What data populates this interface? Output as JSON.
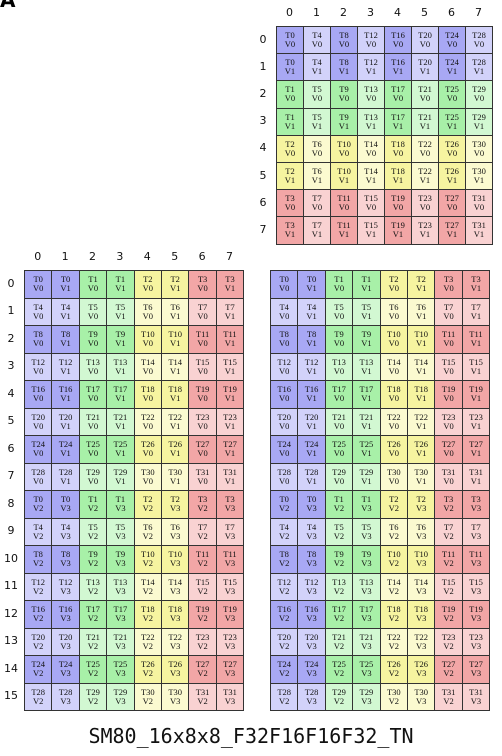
{
  "corner_label": "A",
  "matrix_b": {
    "col_labels": [
      0,
      1,
      2,
      3,
      4,
      5,
      6,
      7
    ],
    "row_labels": [
      0,
      1,
      2,
      3,
      4,
      5,
      6,
      7
    ],
    "rows": [
      [
        "T0\nV0",
        "T4\nV0",
        "T8\nV0",
        "T12\nV0",
        "T16\nV0",
        "T20\nV0",
        "T24\nV0",
        "T28\nV0"
      ],
      [
        "T0\nV1",
        "T4\nV1",
        "T8\nV1",
        "T12\nV1",
        "T16\nV1",
        "T20\nV1",
        "T24\nV1",
        "T28\nV1"
      ],
      [
        "T1\nV0",
        "T5\nV0",
        "T9\nV0",
        "T13\nV0",
        "T17\nV0",
        "T21\nV0",
        "T25\nV0",
        "T29\nV0"
      ],
      [
        "T1\nV1",
        "T5\nV1",
        "T9\nV1",
        "T13\nV1",
        "T17\nV1",
        "T21\nV1",
        "T25\nV1",
        "T29\nV1"
      ],
      [
        "T2\nV0",
        "T6\nV0",
        "T10\nV0",
        "T14\nV0",
        "T18\nV0",
        "T22\nV0",
        "T26\nV0",
        "T30\nV0"
      ],
      [
        "T2\nV1",
        "T6\nV1",
        "T10\nV1",
        "T14\nV1",
        "T18\nV1",
        "T22\nV1",
        "T26\nV1",
        "T30\nV1"
      ],
      [
        "T3\nV0",
        "T7\nV0",
        "T11\nV0",
        "T15\nV0",
        "T19\nV0",
        "T23\nV0",
        "T27\nV0",
        "T31\nV0"
      ],
      [
        "T3\nV1",
        "T7\nV1",
        "T11\nV1",
        "T15\nV1",
        "T19\nV1",
        "T23\nV1",
        "T27\nV1",
        "T31\nV1"
      ]
    ]
  },
  "matrix_a": {
    "col_labels": [
      0,
      1,
      2,
      3,
      4,
      5,
      6,
      7
    ],
    "row_labels": [
      0,
      1,
      2,
      3,
      4,
      5,
      6,
      7,
      8,
      9,
      10,
      11,
      12,
      13,
      14,
      15
    ],
    "rows": [
      [
        "T0\nV0",
        "T0\nV1",
        "T1\nV0",
        "T1\nV1",
        "T2\nV0",
        "T2\nV1",
        "T3\nV0",
        "T3\nV1"
      ],
      [
        "T4\nV0",
        "T4\nV1",
        "T5\nV0",
        "T5\nV1",
        "T6\nV0",
        "T6\nV1",
        "T7\nV0",
        "T7\nV1"
      ],
      [
        "T8\nV0",
        "T8\nV1",
        "T9\nV0",
        "T9\nV1",
        "T10\nV0",
        "T10\nV1",
        "T11\nV0",
        "T11\nV1"
      ],
      [
        "T12\nV0",
        "T12\nV1",
        "T13\nV0",
        "T13\nV1",
        "T14\nV0",
        "T14\nV1",
        "T15\nV0",
        "T15\nV1"
      ],
      [
        "T16\nV0",
        "T16\nV1",
        "T17\nV0",
        "T17\nV1",
        "T18\nV0",
        "T18\nV1",
        "T19\nV0",
        "T19\nV1"
      ],
      [
        "T20\nV0",
        "T20\nV1",
        "T21\nV0",
        "T21\nV1",
        "T22\nV0",
        "T22\nV1",
        "T23\nV0",
        "T23\nV1"
      ],
      [
        "T24\nV0",
        "T24\nV1",
        "T25\nV0",
        "T25\nV1",
        "T26\nV0",
        "T26\nV1",
        "T27\nV0",
        "T27\nV1"
      ],
      [
        "T28\nV0",
        "T28\nV1",
        "T29\nV0",
        "T29\nV1",
        "T30\nV0",
        "T30\nV1",
        "T31\nV0",
        "T31\nV1"
      ],
      [
        "T0\nV2",
        "T0\nV3",
        "T1\nV2",
        "T1\nV3",
        "T2\nV2",
        "T2\nV3",
        "T3\nV2",
        "T3\nV3"
      ],
      [
        "T4\nV2",
        "T4\nV3",
        "T5\nV2",
        "T5\nV3",
        "T6\nV2",
        "T6\nV3",
        "T7\nV2",
        "T7\nV3"
      ],
      [
        "T8\nV2",
        "T8\nV3",
        "T9\nV2",
        "T9\nV3",
        "T10\nV2",
        "T10\nV3",
        "T11\nV2",
        "T11\nV3"
      ],
      [
        "T12\nV2",
        "T12\nV3",
        "T13\nV2",
        "T13\nV3",
        "T14\nV2",
        "T14\nV3",
        "T15\nV2",
        "T15\nV3"
      ],
      [
        "T16\nV2",
        "T16\nV3",
        "T17\nV2",
        "T17\nV3",
        "T18\nV2",
        "T18\nV3",
        "T19\nV2",
        "T19\nV3"
      ],
      [
        "T20\nV2",
        "T20\nV3",
        "T21\nV2",
        "T21\nV3",
        "T22\nV2",
        "T22\nV3",
        "T23\nV2",
        "T23\nV3"
      ],
      [
        "T24\nV2",
        "T24\nV3",
        "T25\nV2",
        "T25\nV3",
        "T26\nV2",
        "T26\nV3",
        "T27\nV2",
        "T27\nV3"
      ],
      [
        "T28\nV2",
        "T28\nV3",
        "T29\nV2",
        "T29\nV3",
        "T30\nV2",
        "T30\nV3",
        "T31\nV2",
        "T31\nV3"
      ]
    ]
  },
  "matrix_c": {
    "rows": [
      [
        "T0\nV0",
        "T0\nV1",
        "T1\nV0",
        "T1\nV1",
        "T2\nV0",
        "T2\nV1",
        "T3\nV0",
        "T3\nV1"
      ],
      [
        "T4\nV0",
        "T4\nV1",
        "T5\nV0",
        "T5\nV1",
        "T6\nV0",
        "T6\nV1",
        "T7\nV0",
        "T7\nV1"
      ],
      [
        "T8\nV0",
        "T8\nV1",
        "T9\nV0",
        "T9\nV1",
        "T10\nV0",
        "T10\nV1",
        "T11\nV0",
        "T11\nV1"
      ],
      [
        "T12\nV0",
        "T12\nV1",
        "T13\nV0",
        "T13\nV1",
        "T14\nV0",
        "T14\nV1",
        "T15\nV0",
        "T15\nV1"
      ],
      [
        "T16\nV0",
        "T16\nV1",
        "T17\nV0",
        "T17\nV1",
        "T18\nV0",
        "T18\nV1",
        "T19\nV0",
        "T19\nV1"
      ],
      [
        "T20\nV0",
        "T20\nV1",
        "T21\nV0",
        "T21\nV1",
        "T22\nV0",
        "T22\nV1",
        "T23\nV0",
        "T23\nV1"
      ],
      [
        "T24\nV0",
        "T24\nV1",
        "T25\nV0",
        "T25\nV1",
        "T26\nV0",
        "T26\nV1",
        "T27\nV0",
        "T27\nV1"
      ],
      [
        "T28\nV0",
        "T28\nV1",
        "T29\nV0",
        "T29\nV1",
        "T30\nV0",
        "T30\nV1",
        "T31\nV0",
        "T31\nV1"
      ],
      [
        "T0\nV2",
        "T0\nV3",
        "T1\nV2",
        "T1\nV3",
        "T2\nV2",
        "T2\nV3",
        "T3\nV2",
        "T3\nV3"
      ],
      [
        "T4\nV2",
        "T4\nV3",
        "T5\nV2",
        "T5\nV3",
        "T6\nV2",
        "T6\nV3",
        "T7\nV2",
        "T7\nV3"
      ],
      [
        "T8\nV2",
        "T8\nV3",
        "T9\nV2",
        "T9\nV3",
        "T10\nV2",
        "T10\nV3",
        "T11\nV2",
        "T11\nV3"
      ],
      [
        "T12\nV2",
        "T12\nV3",
        "T13\nV2",
        "T13\nV3",
        "T14\nV2",
        "T14\nV3",
        "T15\nV2",
        "T15\nV3"
      ],
      [
        "T16\nV2",
        "T16\nV3",
        "T17\nV2",
        "T17\nV3",
        "T18\nV2",
        "T18\nV3",
        "T19\nV2",
        "T19\nV3"
      ],
      [
        "T20\nV2",
        "T20\nV3",
        "T21\nV2",
        "T21\nV3",
        "T22\nV2",
        "T22\nV3",
        "T23\nV2",
        "T23\nV3"
      ],
      [
        "T24\nV2",
        "T24\nV3",
        "T25\nV2",
        "T25\nV3",
        "T26\nV2",
        "T26\nV3",
        "T27\nV2",
        "T27\nV3"
      ],
      [
        "T28\nV2",
        "T28\nV3",
        "T29\nV2",
        "T29\nV3",
        "T30\nV2",
        "T30\nV3",
        "T31\nV2",
        "T31\nV3"
      ]
    ]
  },
  "caption": "SM80_16x8x8_F32F16F16F32_TN"
}
